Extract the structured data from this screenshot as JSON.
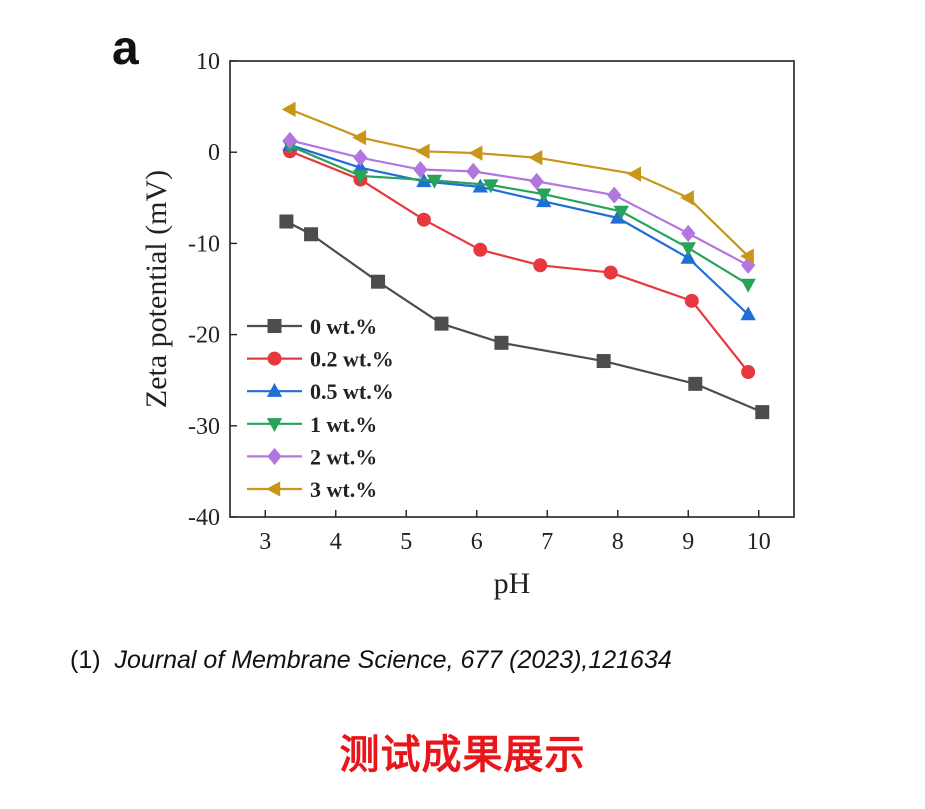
{
  "panel_letter": "a",
  "citation": {
    "number": "(1)",
    "journal": "Journal of Membrane Science, 677 (2023),121634"
  },
  "caption": "测试成果展示",
  "chart_data": {
    "type": "line",
    "xlabel": "pH",
    "ylabel": "Zeta potential (mV)",
    "xlim": [
      2.5,
      10.5
    ],
    "ylim": [
      -40,
      10
    ],
    "xticks": [
      3,
      4,
      5,
      6,
      7,
      8,
      9,
      10
    ],
    "yticks": [
      10,
      0,
      -10,
      -20,
      -30,
      -40
    ],
    "legend_position": "lower-left",
    "series": [
      {
        "name": "0 wt.%",
        "color": "#4d4d4d",
        "marker": "square",
        "x": [
          3.3,
          3.65,
          4.6,
          5.5,
          6.35,
          7.8,
          9.1,
          10.05
        ],
        "y": [
          -7.6,
          -9.0,
          -14.2,
          -18.8,
          -20.9,
          -22.9,
          -25.4,
          -28.5
        ]
      },
      {
        "name": "0.2 wt.%",
        "color": "#e8383f",
        "marker": "circle",
        "x": [
          3.35,
          4.35,
          5.25,
          6.05,
          6.9,
          7.9,
          9.05,
          9.85
        ],
        "y": [
          0.1,
          -3.0,
          -7.4,
          -10.7,
          -12.4,
          -13.2,
          -16.3,
          -24.1
        ]
      },
      {
        "name": "0.5 wt.%",
        "color": "#1f6fd6",
        "marker": "triangle-up",
        "x": [
          3.35,
          4.35,
          5.25,
          6.05,
          6.95,
          8.0,
          9.0,
          9.85
        ],
        "y": [
          0.8,
          -1.7,
          -3.2,
          -3.8,
          -5.4,
          -7.2,
          -11.6,
          -17.8
        ]
      },
      {
        "name": "1 wt.%",
        "color": "#27a35a",
        "marker": "triangle-down",
        "x": [
          3.35,
          4.35,
          5.4,
          6.2,
          6.95,
          8.05,
          9.0,
          9.85
        ],
        "y": [
          0.7,
          -2.6,
          -3.1,
          -3.6,
          -4.6,
          -6.5,
          -10.5,
          -14.5
        ]
      },
      {
        "name": "2 wt.%",
        "color": "#b276e0",
        "marker": "diamond",
        "x": [
          3.35,
          4.35,
          5.2,
          5.95,
          6.85,
          7.95,
          9.0,
          9.85
        ],
        "y": [
          1.3,
          -0.6,
          -1.9,
          -2.1,
          -3.2,
          -4.7,
          -8.9,
          -12.4
        ]
      },
      {
        "name": "3 wt.%",
        "color": "#c9961a",
        "marker": "triangle-left",
        "x": [
          3.35,
          4.35,
          5.25,
          6.0,
          6.85,
          8.25,
          9.0,
          9.85
        ],
        "y": [
          4.7,
          1.6,
          0.1,
          -0.1,
          -0.6,
          -2.4,
          -5.0,
          -11.4
        ]
      }
    ]
  }
}
